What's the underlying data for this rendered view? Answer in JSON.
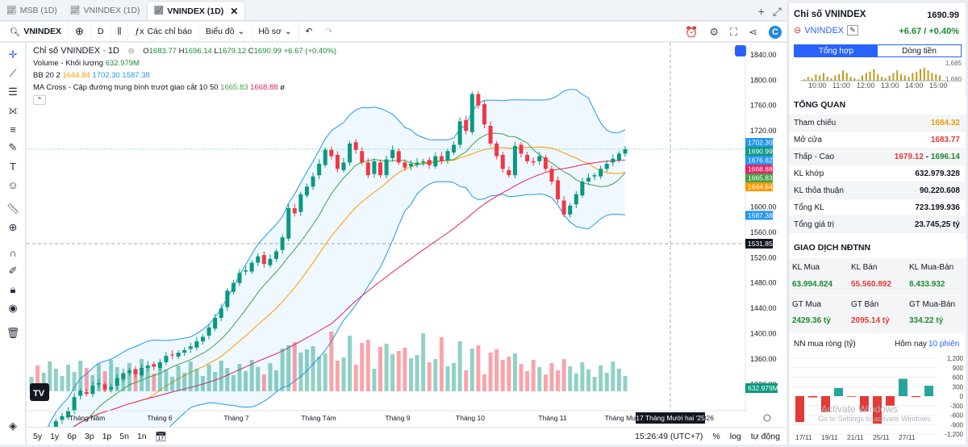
{
  "tabs": [
    {
      "label": "MSB (1D)",
      "active": false
    },
    {
      "label": "VNINDEX (1D)",
      "active": false
    },
    {
      "label": "VNINDEX (1D)",
      "active": true
    }
  ],
  "toolbar": {
    "symbol": "VNINDEX",
    "interval": "D",
    "indicators": "Các chỉ báo",
    "chart_type": "Biểu đồ",
    "profile": "Hồ sơ"
  },
  "legend": {
    "title": "Chỉ số VNINDEX · 1D",
    "ohlc": {
      "o_label": "O",
      "o": "1683.77",
      "h_label": "H",
      "h": "1696.14",
      "l_label": "L",
      "l": "1679.12",
      "c_label": "C",
      "c": "1690.99",
      "chg": "+6.67 (+0.40%)"
    },
    "volume_label": "Volume - Khối lượng",
    "volume_value": "632.979M",
    "bb_label": "BB 20 2",
    "bb_mid": "1644.84",
    "bb_up": "1702.30",
    "bb_low": "1587.38",
    "ma_label": "MA Cross - Cập đường trung bình trượt giao cắt 10 50",
    "ma_fast": "1665.83",
    "ma_slow": "1668.88",
    "ma_null": "ø"
  },
  "price_axis": {
    "ticks": [
      "1840.00",
      "1800.00",
      "1760.00",
      "1720.00",
      "1600.00",
      "1560.00",
      "1520.00",
      "1480.00",
      "1440.00",
      "1400.00",
      "1360.00",
      "1320.00"
    ]
  },
  "price_labels": [
    {
      "text": "1702.30",
      "color": "#2196f3"
    },
    {
      "text": "1690.99",
      "color": "#089981"
    },
    {
      "text": "1676.82",
      "color": "#2196f3"
    },
    {
      "text": "1668.88",
      "color": "#e91e63"
    },
    {
      "text": "1665.83",
      "color": "#43a047"
    },
    {
      "text": "1644.84",
      "color": "#ff9800"
    },
    {
      "text": "1587.38",
      "color": "#2196f3"
    }
  ],
  "crosshair_price": "1531.85",
  "volume_tag": "632.979M",
  "time_axis": {
    "labels": [
      "Tháng Năm",
      "Tháng 6",
      "Tháng 7",
      "Tháng Tám",
      "Tháng 9",
      "Tháng 10",
      "Tháng 11",
      "Tháng Mười"
    ],
    "crosshair_date": "17 Tháng Mười hai '25",
    "tail": "2026"
  },
  "ranges": [
    "5y",
    "1y",
    "6p",
    "3p",
    "1p",
    "5n",
    "1n"
  ],
  "bottom": {
    "time": "15:26:49 (UTC+7)",
    "pct": "%",
    "log": "log",
    "auto": "tự động"
  },
  "panel": {
    "title": "Chỉ số VNINDEX",
    "price": "1690.99",
    "symbol": "VNINDEX",
    "change": "+6.67 / +0.40%",
    "tabs": [
      "Tổng hợp",
      "Dòng tiền"
    ],
    "mini_times": [
      "10:00",
      "11:00",
      "12:00",
      "13:00",
      "14:00",
      "15:00"
    ],
    "mini_ticks": [
      "1,685",
      "1,680"
    ],
    "overview_title": "TỔNG QUAN",
    "overview": [
      {
        "label": "Tham chiếu",
        "value": "1684.32",
        "color": "org"
      },
      {
        "label": "Mở cửa",
        "value": "1683.77",
        "color": "red"
      },
      {
        "label": "Thấp - Cao",
        "value": "1679.12",
        "value2": "1696.14",
        "sep": "-"
      },
      {
        "label": "KL khớp",
        "value": "632.979.328",
        "color": ""
      },
      {
        "label": "KL thỏa thuận",
        "value": "90.220.608",
        "color": ""
      },
      {
        "label": "Tổng KL",
        "value": "723.199.936",
        "color": ""
      },
      {
        "label": "Tổng giá trị",
        "value": "23.745,25 tỷ",
        "color": ""
      }
    ],
    "foreign_title": "GIAO DỊCH NĐTNN",
    "foreign": {
      "h1": [
        "KL Mua",
        "KL Bán",
        "KL Mua-Bán"
      ],
      "v1": [
        "63.994.824",
        "55.560.892",
        "8.433.932"
      ],
      "h2": [
        "GT Mua",
        "GT Bán",
        "GT Mua-Bán"
      ],
      "v2": [
        "2429.36 tỷ",
        "2095.14 tỷ",
        "334.22 tỷ"
      ]
    },
    "net_title": "NN mua ròng (tỷ)",
    "net_today": "Hôm nay",
    "net_10": "10 phiên",
    "net_axis": [
      "1,200",
      "900",
      "600",
      "300",
      "0",
      "-300",
      "-600",
      "-900",
      "-1,200"
    ],
    "net_dates": [
      "17/11",
      "19/11",
      "21/11",
      "25/11",
      "27/11"
    ],
    "watermark": [
      "Activate Windows",
      "Go to Settings to activate Windows."
    ]
  },
  "chart_data": {
    "type": "candlestick",
    "title": "Chỉ số VNINDEX · 1D",
    "ylim": [
      1290,
      1850
    ],
    "last": {
      "open": 1683.77,
      "high": 1696.14,
      "low": 1679.12,
      "close": 1690.99
    },
    "bb": {
      "upper": 1702.3,
      "middle": 1644.84,
      "lower": 1587.38
    },
    "ma": {
      "fast": 1665.83,
      "slow": 1668.88
    },
    "closes": [
      1225,
      1220,
      1228,
      1248,
      1262,
      1270,
      1278,
      1300,
      1310,
      1305,
      1318,
      1322,
      1312,
      1316,
      1330,
      1338,
      1342,
      1336,
      1346,
      1350,
      1348,
      1355,
      1365,
      1366,
      1370,
      1374,
      1380,
      1388,
      1395,
      1410,
      1425,
      1440,
      1468,
      1480,
      1496,
      1500,
      1512,
      1522,
      1510,
      1518,
      1530,
      1552,
      1598,
      1590,
      1620,
      1632,
      1648,
      1668,
      1690,
      1680,
      1660,
      1670,
      1700,
      1690,
      1670,
      1650,
      1672,
      1650,
      1675,
      1690,
      1670,
      1662,
      1668,
      1670,
      1672,
      1666,
      1680,
      1672,
      1688,
      1698,
      1735,
      1720,
      1778,
      1760,
      1730,
      1700,
      1680,
      1660,
      1650,
      1696,
      1684,
      1672,
      1670,
      1680,
      1660,
      1640,
      1612,
      1588,
      1602,
      1620,
      1640,
      1646,
      1650,
      1660,
      1668,
      1676,
      1684,
      1690.99
    ],
    "net_foreign": [
      -820,
      -40,
      -500,
      260,
      -20,
      -480,
      -870,
      -300,
      550,
      -30,
      330
    ]
  }
}
